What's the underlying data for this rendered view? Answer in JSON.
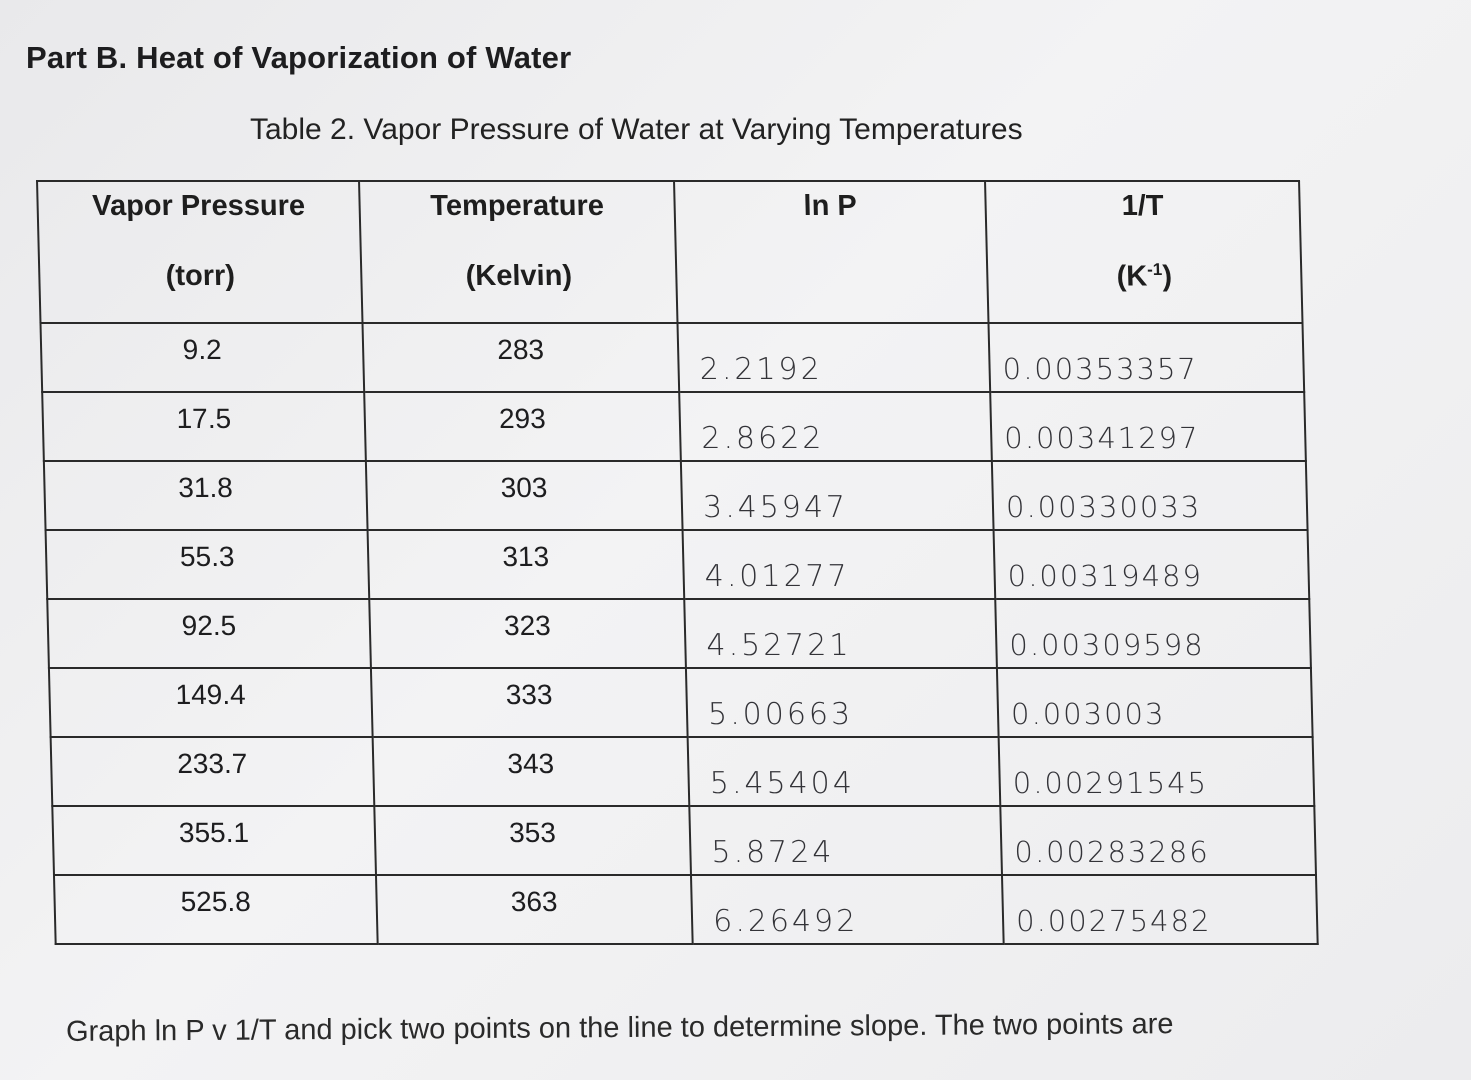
{
  "section_title": "Part B.  Heat of Vaporization of Water",
  "table_caption": "Table 2.  Vapor Pressure of Water at Varying Temperatures",
  "columns": [
    {
      "line1": "Vapor Pressure",
      "line2": "(torr)"
    },
    {
      "line1": "Temperature",
      "line2": "(Kelvin)"
    },
    {
      "line1": "ln P",
      "line2": ""
    },
    {
      "line1": "1/T",
      "line2_base": "(K",
      "line2_sup": "-1",
      "line2_end": ")"
    }
  ],
  "rows": [
    {
      "pressure": "9.2",
      "temperature": "283",
      "ln_p": "2.2192",
      "inv_t": "0.00353357"
    },
    {
      "pressure": "17.5",
      "temperature": "293",
      "ln_p": "2.8622",
      "inv_t": "0.00341297"
    },
    {
      "pressure": "31.8",
      "temperature": "303",
      "ln_p": "3.45947",
      "inv_t": "0.00330033"
    },
    {
      "pressure": "55.3",
      "temperature": "313",
      "ln_p": "4.01277",
      "inv_t": "0.00319489"
    },
    {
      "pressure": "92.5",
      "temperature": "323",
      "ln_p": "4.52721",
      "inv_t": "0.00309598"
    },
    {
      "pressure": "149.4",
      "temperature": "333",
      "ln_p": "5.00663",
      "inv_t": "0.003003"
    },
    {
      "pressure": "233.7",
      "temperature": "343",
      "ln_p": "5.45404",
      "inv_t": "0.00291545"
    },
    {
      "pressure": "355.1",
      "temperature": "353",
      "ln_p": "5.8724",
      "inv_t": "0.00283286"
    },
    {
      "pressure": "525.8",
      "temperature": "363",
      "ln_p": "6.26492",
      "inv_t": "0.00275482"
    }
  ],
  "footer_text": "Graph ln P v 1/T and pick two points on the line to determine slope.  The two points are"
}
